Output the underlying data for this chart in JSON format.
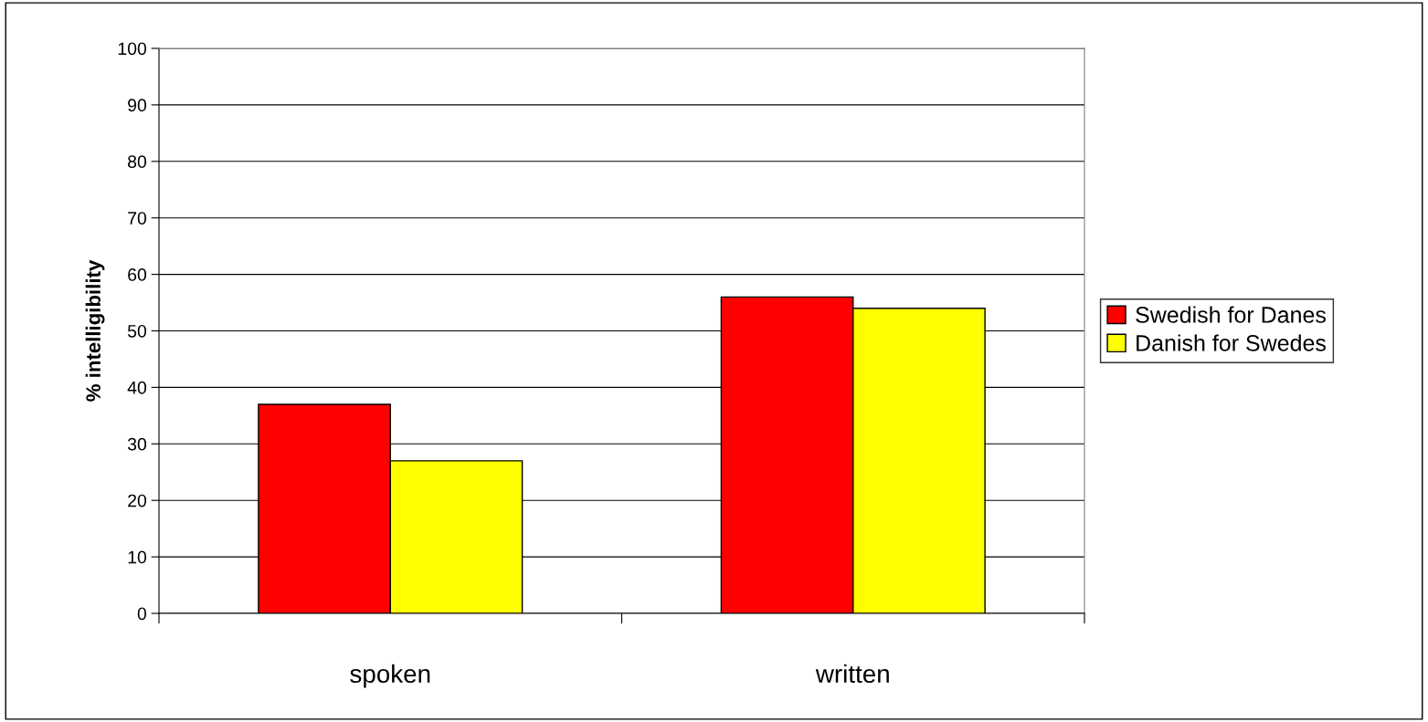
{
  "chart_data": {
    "type": "bar",
    "ylabel": "% intelligibility",
    "categories": [
      "spoken",
      "written"
    ],
    "series": [
      {
        "name": "Swedish for Danes",
        "color": "#ff0000",
        "values": [
          37,
          56
        ]
      },
      {
        "name": "Danish for Swedes",
        "color": "#ffff00",
        "values": [
          27,
          54
        ]
      }
    ],
    "ylim": [
      0,
      100
    ],
    "yticks": [
      0,
      10,
      20,
      30,
      40,
      50,
      60,
      70,
      80,
      90,
      100
    ],
    "grid": "y",
    "legend": "right"
  }
}
